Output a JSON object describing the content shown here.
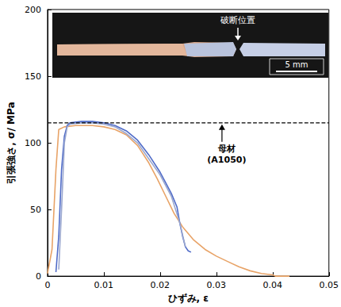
{
  "chart_data": {
    "type": "line",
    "x_label": "ひずみ, ε",
    "y_label": "引張強さ, σ/ MPa",
    "xlim": [
      0,
      0.05
    ],
    "xticks": [
      0,
      0.01,
      0.02,
      0.03,
      0.04,
      0.05
    ],
    "ylim": [
      0,
      200
    ],
    "yticks": [
      0,
      50,
      100,
      150,
      200
    ],
    "grid": false,
    "series": [
      {
        "color": "#e8a367",
        "x": [
          0,
          0.0008,
          0.0015,
          0.002,
          0.003,
          0.005,
          0.008,
          0.01,
          0.012,
          0.014,
          0.016,
          0.018,
          0.0195,
          0.021,
          0.0225,
          0.024,
          0.026,
          0.028,
          0.03,
          0.032,
          0.034,
          0.036,
          0.038,
          0.04,
          0.0405,
          0.043
        ],
        "values": [
          2,
          20,
          80,
          110,
          112,
          113,
          113,
          112,
          110,
          106,
          98,
          85,
          73,
          60,
          47,
          37,
          27,
          20,
          15,
          11,
          7,
          4,
          2,
          1,
          0,
          0
        ]
      },
      {
        "color": "#4f6bc8",
        "x": [
          0.0015,
          0.002,
          0.0025,
          0.003,
          0.0035,
          0.004,
          0.006,
          0.008,
          0.01,
          0.012,
          0.014,
          0.016,
          0.018,
          0.02,
          0.021,
          0.022,
          0.023,
          0.0235,
          0.024,
          0.0245,
          0.025,
          0.0255
        ],
        "values": [
          3,
          30,
          80,
          105,
          113,
          115,
          116,
          116,
          115,
          113,
          109,
          102,
          91,
          78,
          70,
          62,
          52,
          40,
          30,
          22,
          19,
          18
        ]
      },
      {
        "color": "#9aa7cf",
        "x": [
          0.002,
          0.0025,
          0.003,
          0.0035,
          0.004,
          0.006,
          0.008,
          0.01,
          0.012,
          0.014,
          0.016,
          0.018,
          0.02,
          0.022,
          0.0235,
          0.0245
        ],
        "values": [
          5,
          50,
          100,
          112,
          114,
          115,
          115,
          114,
          112,
          107,
          100,
          88,
          76,
          60,
          40,
          22
        ]
      }
    ],
    "reference_line": {
      "value": 115,
      "label": "母材\n(A1050)",
      "line_style": "dashed",
      "color": "#000000"
    },
    "inset": {
      "label": "破断位置",
      "scale_label": "5 mm"
    }
  }
}
